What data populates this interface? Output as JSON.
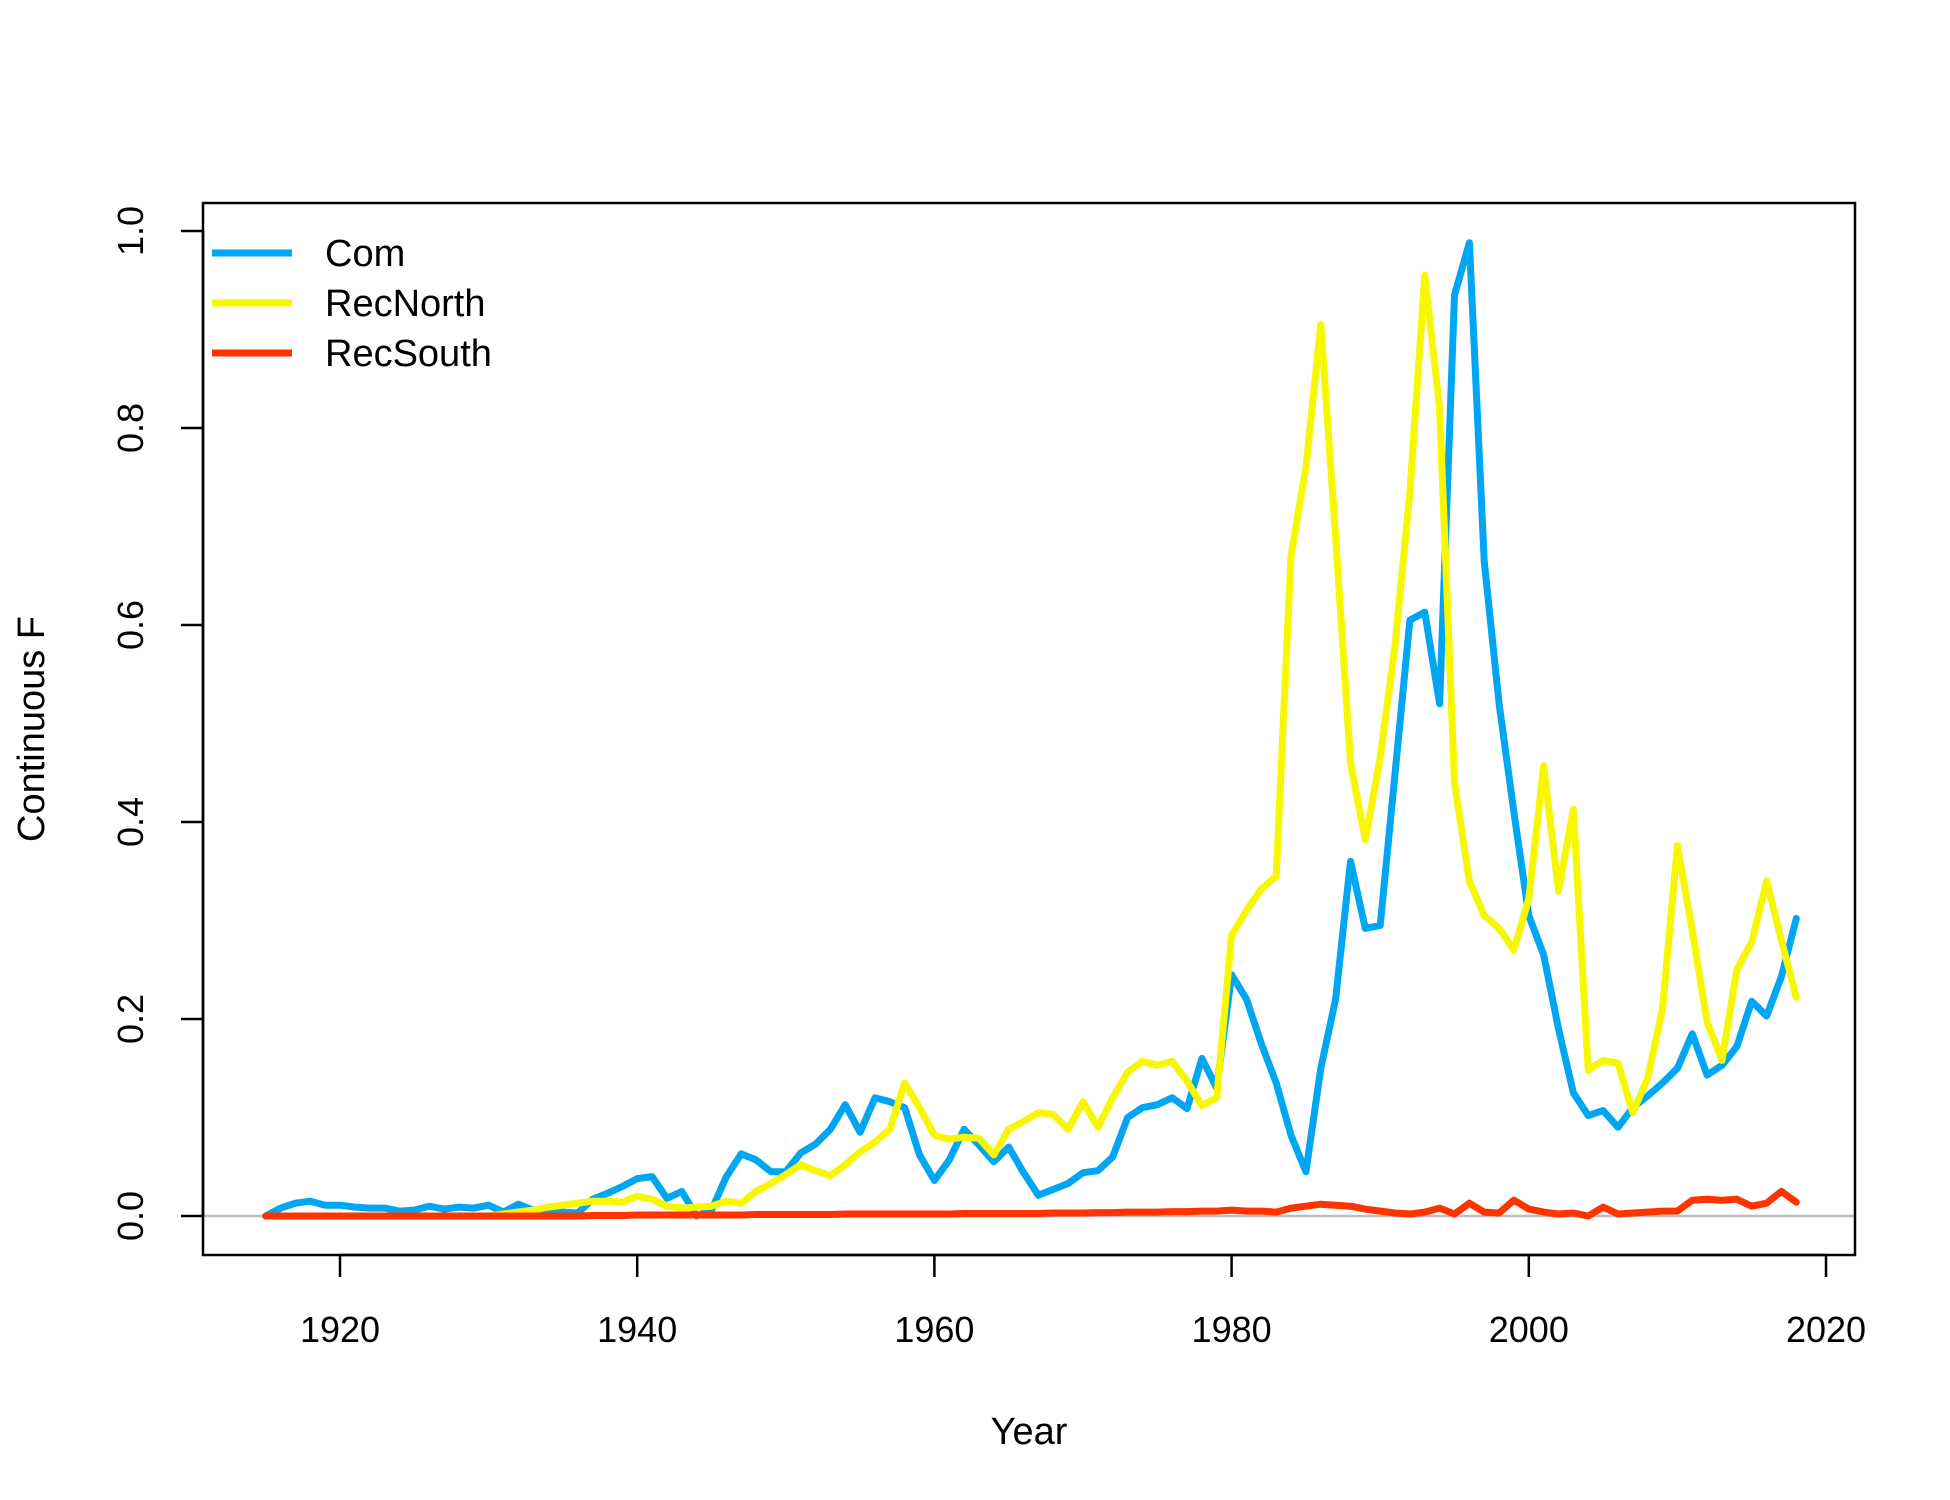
{
  "chart_data": {
    "type": "line",
    "xlabel": "Year",
    "ylabel": "Continuous F",
    "xlim": [
      1910,
      2020
    ],
    "ylim": [
      0,
      1.0
    ],
    "x_ticks": [
      1920,
      1940,
      1960,
      1980,
      2000,
      2020
    ],
    "y_ticks": [
      0.0,
      0.2,
      0.4,
      0.6,
      0.8,
      1.0
    ],
    "y_tick_labels": [
      "0.0",
      "0.2",
      "0.4",
      "0.6",
      "0.8",
      "1.0"
    ],
    "grid": false,
    "reference_line": {
      "y": 0,
      "color": "#bebebe"
    },
    "legend": {
      "placement": "top-left"
    },
    "x": [
      1915,
      1916,
      1917,
      1918,
      1919,
      1920,
      1921,
      1922,
      1923,
      1924,
      1925,
      1926,
      1927,
      1928,
      1929,
      1930,
      1931,
      1932,
      1933,
      1934,
      1935,
      1936,
      1937,
      1938,
      1939,
      1940,
      1941,
      1942,
      1943,
      1944,
      1945,
      1946,
      1947,
      1948,
      1949,
      1950,
      1951,
      1952,
      1953,
      1954,
      1955,
      1956,
      1957,
      1958,
      1959,
      1960,
      1961,
      1962,
      1963,
      1964,
      1965,
      1966,
      1967,
      1968,
      1969,
      1970,
      1971,
      1972,
      1973,
      1974,
      1975,
      1976,
      1977,
      1978,
      1979,
      1980,
      1981,
      1982,
      1983,
      1984,
      1985,
      1986,
      1987,
      1988,
      1989,
      1990,
      1991,
      1992,
      1993,
      1994,
      1995,
      1996,
      1997,
      1998,
      1999,
      2000,
      2001,
      2002,
      2003,
      2004,
      2005,
      2006,
      2007,
      2008,
      2009,
      2010,
      2011,
      2012,
      2013,
      2014,
      2015,
      2016,
      2017,
      2018
    ],
    "series": [
      {
        "name": "Com",
        "color": "#00a6f2",
        "values": [
          0.0,
          0.008,
          0.013,
          0.015,
          0.011,
          0.011,
          0.009,
          0.008,
          0.008,
          0.005,
          0.006,
          0.01,
          0.007,
          0.009,
          0.008,
          0.011,
          0.004,
          0.012,
          0.006,
          0.004,
          0.004,
          0.003,
          0.017,
          0.023,
          0.03,
          0.038,
          0.04,
          0.018,
          0.025,
          0.0,
          0.006,
          0.04,
          0.063,
          0.057,
          0.045,
          0.045,
          0.064,
          0.073,
          0.088,
          0.113,
          0.085,
          0.12,
          0.116,
          0.11,
          0.062,
          0.036,
          0.057,
          0.088,
          0.072,
          0.055,
          0.07,
          0.044,
          0.021,
          0.027,
          0.033,
          0.044,
          0.046,
          0.06,
          0.1,
          0.11,
          0.113,
          0.12,
          0.109,
          0.16,
          0.13,
          0.245,
          0.22,
          0.175,
          0.135,
          0.082,
          0.045,
          0.15,
          0.22,
          0.36,
          0.292,
          0.295,
          0.45,
          0.605,
          0.613,
          0.52,
          0.935,
          0.988,
          0.665,
          0.52,
          0.41,
          0.305,
          0.265,
          0.19,
          0.125,
          0.102,
          0.107,
          0.09,
          0.11,
          0.122,
          0.135,
          0.15,
          0.185,
          0.143,
          0.153,
          0.172,
          0.218,
          0.203,
          0.243,
          0.302
        ]
      },
      {
        "name": "RecNorth",
        "color": "#f7f700",
        "values": [
          0.0,
          0.0,
          0.0,
          0.0,
          0.0,
          0.0,
          0.0,
          0.0,
          0.0,
          0.0,
          0.0,
          0.0,
          0.0,
          0.0,
          0.0,
          0.0,
          0.002,
          0.004,
          0.006,
          0.009,
          0.011,
          0.013,
          0.015,
          0.015,
          0.014,
          0.02,
          0.017,
          0.01,
          0.008,
          0.009,
          0.01,
          0.015,
          0.013,
          0.025,
          0.033,
          0.042,
          0.052,
          0.046,
          0.041,
          0.052,
          0.065,
          0.075,
          0.088,
          0.135,
          0.11,
          0.082,
          0.078,
          0.08,
          0.079,
          0.062,
          0.088,
          0.096,
          0.105,
          0.103,
          0.088,
          0.116,
          0.09,
          0.12,
          0.146,
          0.157,
          0.153,
          0.157,
          0.137,
          0.112,
          0.12,
          0.285,
          0.31,
          0.332,
          0.345,
          0.67,
          0.76,
          0.905,
          0.69,
          0.46,
          0.382,
          0.465,
          0.58,
          0.735,
          0.955,
          0.82,
          0.44,
          0.34,
          0.305,
          0.292,
          0.27,
          0.322,
          0.457,
          0.33,
          0.413,
          0.148,
          0.158,
          0.155,
          0.105,
          0.14,
          0.21,
          0.376,
          0.29,
          0.197,
          0.158,
          0.25,
          0.278,
          0.34,
          0.28,
          0.222
        ]
      },
      {
        "name": "RecSouth",
        "color": "#ff3300",
        "values": [
          0.0,
          0.0,
          0.0,
          0.0,
          0.0,
          0.0,
          0.0,
          0.0,
          0.0,
          0.0,
          0.0,
          0.0,
          0.0,
          0.0,
          0.0,
          0.0,
          0.0,
          0.0,
          0.0,
          0.0,
          0.0,
          0.0,
          0.0005,
          0.0005,
          0.0005,
          0.001,
          0.001,
          0.001,
          0.001,
          0.001,
          0.001,
          0.001,
          0.001,
          0.0015,
          0.0015,
          0.0015,
          0.0015,
          0.0015,
          0.0015,
          0.002,
          0.002,
          0.002,
          0.002,
          0.002,
          0.002,
          0.002,
          0.002,
          0.0025,
          0.0025,
          0.0025,
          0.0025,
          0.0025,
          0.0025,
          0.003,
          0.003,
          0.003,
          0.0035,
          0.0035,
          0.004,
          0.004,
          0.004,
          0.0045,
          0.0045,
          0.005,
          0.005,
          0.006,
          0.005,
          0.005,
          0.004,
          0.008,
          0.01,
          0.012,
          0.011,
          0.01,
          0.007,
          0.005,
          0.003,
          0.002,
          0.004,
          0.008,
          0.002,
          0.013,
          0.004,
          0.003,
          0.016,
          0.007,
          0.004,
          0.002,
          0.003,
          0.0,
          0.009,
          0.002,
          0.003,
          0.004,
          0.005,
          0.005,
          0.016,
          0.017,
          0.016,
          0.017,
          0.01,
          0.013,
          0.025,
          0.014
        ]
      }
    ]
  }
}
